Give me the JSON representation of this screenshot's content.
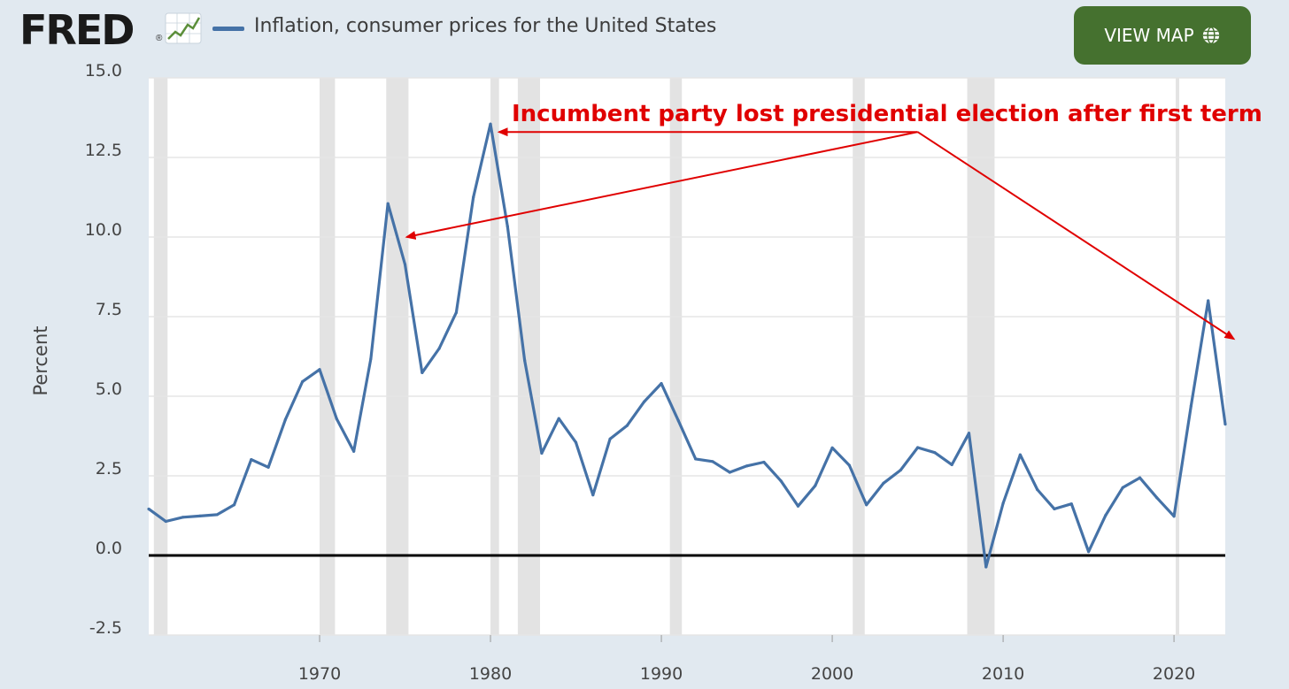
{
  "header": {
    "logo_text": "FRED",
    "logo_mark": "®",
    "series_title": "Inflation, consumer prices for the United States",
    "view_map_label": "VIEW MAP",
    "view_map_icon": "globe-icon",
    "graph_icon": "line-graph-icon"
  },
  "chart_data": {
    "type": "line",
    "title": "Inflation, consumer prices for the United States",
    "ylabel": "Percent",
    "xlabel": "",
    "ylim": [
      -2.5,
      15.0
    ],
    "xlim": [
      1960,
      2023
    ],
    "yticks": [
      -2.5,
      0.0,
      2.5,
      5.0,
      7.5,
      10.0,
      12.5,
      15.0
    ],
    "ytick_labels": [
      "-2.5",
      "0.0",
      "2.5",
      "5.0",
      "7.5",
      "10.0",
      "12.5",
      "15.0"
    ],
    "xticks": [
      1970,
      1980,
      1990,
      2000,
      2010,
      2020
    ],
    "xtick_labels": [
      "1970",
      "1980",
      "1990",
      "2000",
      "2010",
      "2020"
    ],
    "grid": true,
    "series": [
      {
        "name": "Inflation, consumer prices for the United States",
        "color": "#4572a7",
        "x": [
          1960,
          1961,
          1962,
          1963,
          1964,
          1965,
          1966,
          1967,
          1968,
          1969,
          1970,
          1971,
          1972,
          1973,
          1974,
          1975,
          1976,
          1977,
          1978,
          1979,
          1980,
          1981,
          1982,
          1983,
          1984,
          1985,
          1986,
          1987,
          1988,
          1989,
          1990,
          1991,
          1992,
          1993,
          1994,
          1995,
          1996,
          1997,
          1998,
          1999,
          2000,
          2001,
          2002,
          2003,
          2004,
          2005,
          2006,
          2007,
          2008,
          2009,
          2010,
          2011,
          2012,
          2013,
          2014,
          2015,
          2016,
          2017,
          2018,
          2019,
          2020,
          2021,
          2022,
          2023
        ],
        "y": [
          1.46,
          1.07,
          1.2,
          1.24,
          1.28,
          1.59,
          3.01,
          2.77,
          4.27,
          5.46,
          5.84,
          4.29,
          3.27,
          6.18,
          11.05,
          9.14,
          5.74,
          6.5,
          7.63,
          11.25,
          13.55,
          10.33,
          6.13,
          3.21,
          4.3,
          3.55,
          1.9,
          3.66,
          4.08,
          4.83,
          5.4,
          4.23,
          3.03,
          2.95,
          2.61,
          2.81,
          2.93,
          2.34,
          1.55,
          2.19,
          3.38,
          2.83,
          1.59,
          2.27,
          2.68,
          3.39,
          3.23,
          2.85,
          3.84,
          -0.36,
          1.64,
          3.16,
          2.07,
          1.46,
          1.62,
          0.12,
          1.26,
          2.13,
          2.44,
          1.81,
          1.23,
          4.7,
          8.0,
          4.12
        ]
      }
    ],
    "recessions": [
      [
        1960.3,
        1961.1
      ],
      [
        1970.0,
        1970.9
      ],
      [
        1973.9,
        1975.2
      ],
      [
        1980.0,
        1980.5
      ],
      [
        1981.6,
        1982.9
      ],
      [
        1990.5,
        1991.2
      ],
      [
        2001.2,
        2001.9
      ],
      [
        2007.9,
        2009.5
      ],
      [
        2020.1,
        2020.3
      ]
    ],
    "annotation": {
      "text": "Incumbent party lost presidential election after first term",
      "color": "#e00000",
      "arrow_targets": [
        {
          "x": 1975.1,
          "y": 10.0
        },
        {
          "x": 1980.5,
          "y": 13.3
        },
        {
          "x": 2023.5,
          "y": 6.8
        }
      ],
      "arrow_origin": {
        "x": 2005,
        "y": 13.3
      }
    }
  }
}
